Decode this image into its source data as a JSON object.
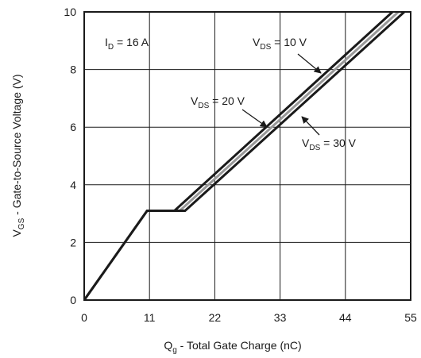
{
  "chart_data": {
    "type": "line",
    "xlabel": {
      "main": "Q",
      "sub": "g",
      "rest": " - Total Gate Charge (nC)"
    },
    "ylabel": {
      "main": "V",
      "sub": "GS",
      "rest": " - Gate-to-Source Voltage (V)"
    },
    "xlim": [
      0,
      55
    ],
    "ylim": [
      0,
      10
    ],
    "xticks": [
      0,
      11,
      22,
      33,
      44,
      55
    ],
    "yticks": [
      0,
      2,
      4,
      6,
      8,
      10
    ],
    "grid": true,
    "colors": {
      "frame": "#1a1a1a",
      "grid": "#1a1a1a",
      "series_dark": "#1a1a1a",
      "series_gray": "#999999"
    },
    "series": [
      {
        "name": {
          "main": "V",
          "sub": "DS",
          "rest": " = 10 V"
        },
        "color": "#1a1a1a",
        "x": [
          0,
          10.6,
          15.2,
          53
        ],
        "y": [
          0,
          3.1,
          3.1,
          10.2
        ]
      },
      {
        "name": {
          "main": "V",
          "sub": "DS",
          "rest": " = 20 V"
        },
        "color": "#999999",
        "x": [
          0,
          10.6,
          16.1,
          54
        ],
        "y": [
          0,
          3.1,
          3.1,
          10.2
        ]
      },
      {
        "name": {
          "main": "V",
          "sub": "DS",
          "rest": " = 30 V"
        },
        "color": "#1a1a1a",
        "x": [
          0,
          10.6,
          17.0,
          55
        ],
        "y": [
          0,
          3.1,
          3.1,
          10.2
        ]
      }
    ],
    "annotations": [
      {
        "main": "I",
        "sub": "D",
        "rest": " = 16 A"
      }
    ]
  }
}
